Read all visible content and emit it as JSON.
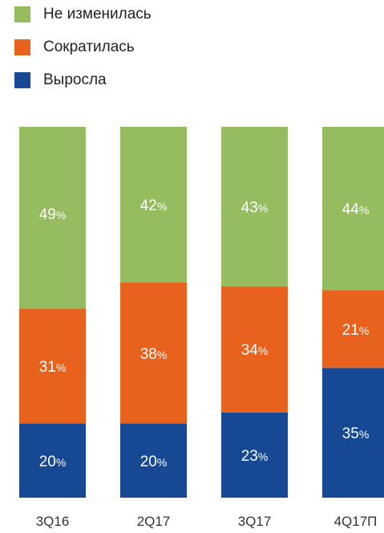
{
  "colors": {
    "unchanged": "#95BC5E",
    "decreased": "#E8621E",
    "grew": "#174894",
    "segment_text": "#ffffff",
    "axis_text": "#333333"
  },
  "legend": {
    "items": [
      {
        "key": "unchanged",
        "label": "Не изменилась"
      },
      {
        "key": "decreased",
        "label": "Сократилась"
      },
      {
        "key": "grew",
        "label": "Выросла"
      }
    ]
  },
  "chart_data": {
    "type": "bar",
    "stacked": true,
    "title": "",
    "xlabel": "",
    "ylabel": "",
    "ylim": [
      0,
      100
    ],
    "value_suffix": "%",
    "grid": false,
    "legend_position": "top-left",
    "categories": [
      "3Q16",
      "2Q17",
      "3Q17",
      "4Q17П"
    ],
    "series": [
      {
        "name": "Выросла",
        "key": "grew",
        "values": [
          20,
          20,
          23,
          35
        ]
      },
      {
        "name": "Сократилась",
        "key": "decreased",
        "values": [
          31,
          38,
          34,
          21
        ]
      },
      {
        "name": "Не изменилась",
        "key": "unchanged",
        "values": [
          49,
          42,
          43,
          44
        ]
      }
    ]
  }
}
